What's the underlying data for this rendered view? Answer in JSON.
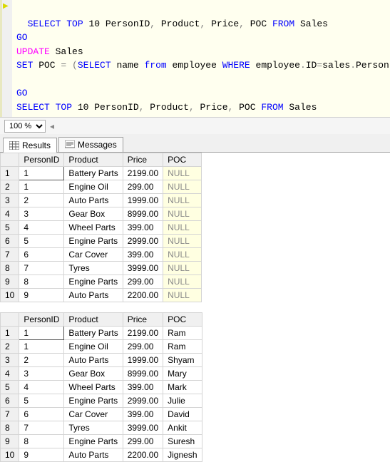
{
  "sql": {
    "line1_a": "SELECT",
    "line1_b": "TOP",
    "line1_c": " 10 PersonID",
    "line1_d": " Product",
    "line1_e": " Price",
    "line1_f": " POC ",
    "line1_g": "FROM",
    "line1_h": " Sales",
    "line2": "GO",
    "line3_a": "UPDATE",
    "line3_b": " Sales",
    "line4_a": "SET",
    "line4_b": " POC ",
    "line4_c": "=",
    "line4_d": " (",
    "line4_e": "SELECT",
    "line4_f": " name ",
    "line4_g": "from",
    "line4_h": " employee ",
    "line4_i": "WHERE",
    "line4_j": " employee",
    "line4_k": "ID",
    "line4_l": "sales",
    "line4_m": "PersonID",
    "line4_n": ")",
    "line6": "GO",
    "line7_a": "SELECT",
    "line7_b": "TOP",
    "line7_c": " 10 PersonID",
    "line7_d": " Product",
    "line7_e": " Price",
    "line7_f": " POC ",
    "line7_g": "FROM",
    "line7_h": " Sales",
    "comma": ",",
    "dot": ".",
    "eq": "="
  },
  "zoom": {
    "value": "100 %"
  },
  "tabs": {
    "results": "Results",
    "messages": "Messages"
  },
  "headers": {
    "person": "PersonID",
    "product": "Product",
    "price": "Price",
    "poc": "POC"
  },
  "null_label": "NULL",
  "grid1": {
    "rows": [
      {
        "n": "1",
        "person": "1",
        "product": "Battery Parts",
        "price": "2199.00",
        "poc": null
      },
      {
        "n": "2",
        "person": "1",
        "product": "Engine Oil",
        "price": "299.00",
        "poc": null
      },
      {
        "n": "3",
        "person": "2",
        "product": "Auto Parts",
        "price": "1999.00",
        "poc": null
      },
      {
        "n": "4",
        "person": "3",
        "product": "Gear Box",
        "price": "8999.00",
        "poc": null
      },
      {
        "n": "5",
        "person": "4",
        "product": "Wheel Parts",
        "price": "399.00",
        "poc": null
      },
      {
        "n": "6",
        "person": "5",
        "product": "Engine Parts",
        "price": "2999.00",
        "poc": null
      },
      {
        "n": "7",
        "person": "6",
        "product": "Car Cover",
        "price": "399.00",
        "poc": null
      },
      {
        "n": "8",
        "person": "7",
        "product": "Tyres",
        "price": "3999.00",
        "poc": null
      },
      {
        "n": "9",
        "person": "8",
        "product": "Engine Parts",
        "price": "299.00",
        "poc": null
      },
      {
        "n": "10",
        "person": "9",
        "product": "Auto Parts",
        "price": "2200.00",
        "poc": null
      }
    ]
  },
  "grid2": {
    "rows": [
      {
        "n": "1",
        "person": "1",
        "product": "Battery Parts",
        "price": "2199.00",
        "poc": "Ram"
      },
      {
        "n": "2",
        "person": "1",
        "product": "Engine Oil",
        "price": "299.00",
        "poc": "Ram"
      },
      {
        "n": "3",
        "person": "2",
        "product": "Auto Parts",
        "price": "1999.00",
        "poc": "Shyam"
      },
      {
        "n": "4",
        "person": "3",
        "product": "Gear Box",
        "price": "8999.00",
        "poc": "Mary"
      },
      {
        "n": "5",
        "person": "4",
        "product": "Wheel Parts",
        "price": "399.00",
        "poc": "Mark"
      },
      {
        "n": "6",
        "person": "5",
        "product": "Engine Parts",
        "price": "2999.00",
        "poc": "Julie"
      },
      {
        "n": "7",
        "person": "6",
        "product": "Car Cover",
        "price": "399.00",
        "poc": "David"
      },
      {
        "n": "8",
        "person": "7",
        "product": "Tyres",
        "price": "3999.00",
        "poc": "Ankit"
      },
      {
        "n": "9",
        "person": "8",
        "product": "Engine Parts",
        "price": "299.00",
        "poc": "Suresh"
      },
      {
        "n": "10",
        "person": "9",
        "product": "Auto Parts",
        "price": "2200.00",
        "poc": "Jignesh"
      }
    ]
  }
}
